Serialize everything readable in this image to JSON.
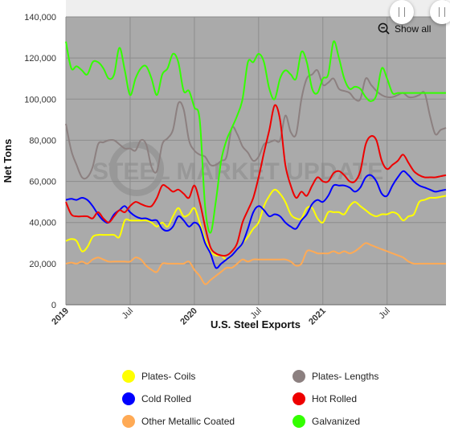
{
  "chart_data": {
    "type": "line",
    "xlabel": "U.S. Steel Exports",
    "ylabel": "Net Tons",
    "ylim": [
      0,
      140000
    ],
    "yticks": [
      "0",
      "20,000",
      "40,000",
      "60,000",
      "80,000",
      "100,000",
      "120,000",
      "140,000"
    ],
    "xticks": [
      {
        "label": "2019",
        "x": 0,
        "bold": true
      },
      {
        "label": "Jul",
        "x": 6,
        "bold": false
      },
      {
        "label": "2020",
        "x": 12,
        "bold": true
      },
      {
        "label": "Jul",
        "x": 18,
        "bold": false
      },
      {
        "label": "2021",
        "x": 24,
        "bold": true
      },
      {
        "label": "Jul",
        "x": 30,
        "bold": false
      }
    ],
    "xlim": [
      0,
      35.5
    ],
    "grid": true,
    "background": "#aaaaaa",
    "watermark": "STEEL MARKET UPDATE",
    "series": [
      {
        "name": "Plates- Coils",
        "color": "#ffff00",
        "x": [
          0,
          0.5,
          1,
          1.5,
          2,
          2.5,
          3,
          3.5,
          4,
          4.5,
          5,
          5.5,
          6,
          6.5,
          7,
          7.5,
          8,
          8.5,
          9,
          9.5,
          10,
          10.5,
          11,
          11.5,
          12,
          12.5,
          13,
          13.5,
          14,
          14.5,
          15,
          15.5,
          16,
          16.5,
          17,
          17.5,
          18,
          18.5,
          19,
          19.5,
          20,
          20.5,
          21,
          21.5,
          22,
          22.5,
          23,
          23.5,
          24,
          24.5,
          25,
          25.5,
          26,
          26.5,
          27,
          27.5,
          28,
          28.5,
          29,
          29.5,
          30,
          30.5,
          31,
          31.5,
          32,
          32.5,
          33,
          33.5,
          34,
          34.5,
          35,
          35.5
        ],
        "values": [
          31000,
          32000,
          31000,
          26000,
          28000,
          33000,
          34000,
          34000,
          34000,
          34000,
          33000,
          41000,
          41000,
          41000,
          41000,
          41000,
          40000,
          38000,
          40000,
          38000,
          43000,
          47000,
          43000,
          44000,
          47000,
          40000,
          32000,
          26000,
          24000,
          24000,
          22000,
          24000,
          27000,
          30000,
          33000,
          37000,
          40000,
          48000,
          53000,
          56000,
          54000,
          50000,
          44000,
          42000,
          42000,
          47000,
          47000,
          42000,
          40000,
          45000,
          45000,
          45000,
          44000,
          48000,
          50000,
          48000,
          46000,
          44000,
          43000,
          44000,
          44000,
          45000,
          44000,
          41000,
          43000,
          44000,
          50000,
          51000,
          52000,
          52000,
          52500,
          53000
        ]
      },
      {
        "name": "Plates- Lengths",
        "color": "#8c8080",
        "x": [
          0,
          0.5,
          1,
          1.5,
          2,
          2.5,
          3,
          3.5,
          4,
          4.5,
          5,
          5.5,
          6,
          6.5,
          7,
          7.5,
          8,
          8.5,
          9,
          9.5,
          10,
          10.5,
          11,
          11.5,
          12,
          12.5,
          13,
          13.5,
          14,
          14.5,
          15,
          15.5,
          16,
          16.5,
          17,
          17.5,
          18,
          18.5,
          19,
          19.5,
          20,
          20.5,
          21,
          21.5,
          22,
          22.5,
          23,
          23.5,
          24,
          24.5,
          25,
          25.5,
          26,
          26.5,
          27,
          27.5,
          28,
          28.5,
          29,
          29.5,
          30,
          30.5,
          31,
          31.5,
          32,
          32.5,
          33,
          33.5,
          34,
          34.5,
          35,
          35.5
        ],
        "values": [
          88000,
          75000,
          68000,
          62000,
          62000,
          67000,
          78000,
          79000,
          80000,
          80000,
          78000,
          76000,
          76000,
          75000,
          80000,
          78000,
          67000,
          65000,
          78000,
          81000,
          85000,
          98000,
          95000,
          80000,
          75000,
          73000,
          72000,
          68000,
          68000,
          70000,
          72000,
          86000,
          83000,
          77000,
          74000,
          70000,
          72000,
          78000,
          79000,
          80000,
          80000,
          92000,
          84000,
          83000,
          100000,
          110000,
          112000,
          114000,
          107000,
          108000,
          110000,
          105000,
          104000,
          103000,
          100000,
          100000,
          110000,
          107000,
          104000,
          102000,
          101000,
          101000,
          102000,
          103000,
          101000,
          101000,
          102000,
          103000,
          92000,
          83000,
          85000,
          86000
        ]
      },
      {
        "name": "Cold Rolled",
        "color": "#0000ff",
        "x": [
          0,
          0.5,
          1,
          1.5,
          2,
          2.5,
          3,
          3.5,
          4,
          4.5,
          5,
          5.5,
          6,
          6.5,
          7,
          7.5,
          8,
          8.5,
          9,
          9.5,
          10,
          10.5,
          11,
          11.5,
          12,
          12.5,
          13,
          13.5,
          14,
          14.5,
          15,
          15.5,
          16,
          16.5,
          17,
          17.5,
          18,
          18.5,
          19,
          19.5,
          20,
          20.5,
          21,
          21.5,
          22,
          22.5,
          23,
          23.5,
          24,
          24.5,
          25,
          25.5,
          26,
          26.5,
          27,
          27.5,
          28,
          28.5,
          29,
          29.5,
          30,
          30.5,
          31,
          31.5,
          32,
          32.5,
          33,
          33.5,
          34,
          34.5,
          35,
          35.5
        ],
        "values": [
          51000,
          51500,
          51000,
          52000,
          51000,
          48000,
          44000,
          41000,
          40000,
          44000,
          46000,
          48000,
          45000,
          43000,
          42000,
          42000,
          41000,
          41000,
          37000,
          36000,
          38000,
          43000,
          41000,
          38000,
          40000,
          38000,
          30000,
          25000,
          18000,
          20000,
          22000,
          24000,
          27000,
          30000,
          37000,
          45000,
          48000,
          46000,
          43000,
          44000,
          43000,
          40000,
          38000,
          37000,
          41000,
          44000,
          49000,
          51000,
          50000,
          53000,
          58000,
          58000,
          58000,
          57000,
          55000,
          57000,
          62000,
          63000,
          60000,
          54000,
          53000,
          58000,
          62000,
          65000,
          63000,
          60000,
          58000,
          57000,
          56000,
          55000,
          55500,
          56000
        ]
      },
      {
        "name": "Hot Rolled",
        "color": "#ee0000",
        "x": [
          0,
          0.5,
          1,
          1.5,
          2,
          2.5,
          3,
          3.5,
          4,
          4.5,
          5,
          5.5,
          6,
          6.5,
          7,
          7.5,
          8,
          8.5,
          9,
          9.5,
          10,
          10.5,
          11,
          11.5,
          12,
          12.5,
          13,
          13.5,
          14,
          14.5,
          15,
          15.5,
          16,
          16.5,
          17,
          17.5,
          18,
          18.5,
          19,
          19.5,
          20,
          20.5,
          21,
          21.5,
          22,
          22.5,
          23,
          23.5,
          24,
          24.5,
          25,
          25.5,
          26,
          26.5,
          27,
          27.5,
          28,
          28.5,
          29,
          29.5,
          30,
          30.5,
          31,
          31.5,
          32,
          32.5,
          33,
          33.5,
          34,
          34.5,
          35,
          35.5
        ],
        "values": [
          50000,
          44000,
          43000,
          43000,
          43000,
          42000,
          45000,
          42000,
          40000,
          43000,
          46000,
          45000,
          48000,
          50000,
          49000,
          48000,
          48000,
          52000,
          58000,
          57000,
          55000,
          56000,
          54000,
          52000,
          58000,
          50000,
          38000,
          28000,
          25000,
          24000,
          24000,
          26000,
          30000,
          40000,
          46000,
          52000,
          62000,
          74000,
          85000,
          97000,
          90000,
          68000,
          58000,
          52000,
          55000,
          53000,
          58000,
          62000,
          60000,
          60000,
          64000,
          65000,
          63000,
          60000,
          60000,
          65000,
          78000,
          82000,
          80000,
          70000,
          66000,
          68000,
          70000,
          73000,
          69000,
          65000,
          63000,
          62000,
          62000,
          62000,
          62500,
          63000
        ]
      },
      {
        "name": "Other Metallic Coated",
        "color": "#ffaa55",
        "x": [
          0,
          0.5,
          1,
          1.5,
          2,
          2.5,
          3,
          3.5,
          4,
          4.5,
          5,
          5.5,
          6,
          6.5,
          7,
          7.5,
          8,
          8.5,
          9,
          9.5,
          10,
          10.5,
          11,
          11.5,
          12,
          12.5,
          13,
          13.5,
          14,
          14.5,
          15,
          15.5,
          16,
          16.5,
          17,
          17.5,
          18,
          18.5,
          19,
          19.5,
          20,
          20.5,
          21,
          21.5,
          22,
          22.5,
          23,
          23.5,
          24,
          24.5,
          25,
          25.5,
          26,
          26.5,
          27,
          27.5,
          28,
          28.5,
          29,
          29.5,
          30,
          30.5,
          31,
          31.5,
          32,
          32.5,
          33,
          33.5,
          34,
          34.5,
          35,
          35.5
        ],
        "values": [
          20000,
          20500,
          20000,
          21000,
          20000,
          22000,
          23000,
          22000,
          21000,
          21000,
          21000,
          21000,
          21000,
          23000,
          22000,
          19000,
          17000,
          16000,
          20000,
          20000,
          20000,
          20000,
          20000,
          21000,
          17000,
          14000,
          10000,
          12000,
          14000,
          16000,
          18000,
          18000,
          20000,
          22000,
          21000,
          22000,
          22000,
          22000,
          22000,
          22000,
          22000,
          22000,
          21000,
          19000,
          20000,
          26000,
          26000,
          25000,
          25000,
          25000,
          26000,
          25000,
          26000,
          25000,
          26000,
          28000,
          30000,
          29000,
          28000,
          27000,
          26000,
          25000,
          24000,
          23000,
          21000,
          20000,
          20000,
          20000,
          20000,
          20000,
          20000,
          20000
        ]
      },
      {
        "name": "Galvanized",
        "color": "#33ff00",
        "x": [
          0,
          0.5,
          1,
          1.5,
          2,
          2.5,
          3,
          3.5,
          4,
          4.5,
          5,
          5.5,
          6,
          6.5,
          7,
          7.5,
          8,
          8.5,
          9,
          9.5,
          10,
          10.5,
          11,
          11.5,
          12,
          12.5,
          13,
          13.5,
          14,
          14.5,
          15,
          15.5,
          16,
          16.5,
          17,
          17.5,
          18,
          18.5,
          19,
          19.5,
          20,
          20.5,
          21,
          21.5,
          22,
          22.5,
          23,
          23.5,
          24,
          24.5,
          25,
          25.5,
          26,
          26.5,
          27,
          27.5,
          28,
          28.5,
          29,
          29.5,
          30,
          30.5,
          31,
          31.5,
          32,
          32.5,
          33,
          33.5,
          34,
          34.5,
          35,
          35.5
        ],
        "values": [
          128000,
          115000,
          116000,
          114000,
          112000,
          118000,
          118000,
          115000,
          110000,
          112000,
          125000,
          114000,
          102000,
          110000,
          115000,
          116000,
          110000,
          102000,
          112000,
          115000,
          122000,
          118000,
          104000,
          104000,
          96000,
          90000,
          48000,
          35000,
          50000,
          70000,
          80000,
          86000,
          92000,
          100000,
          118000,
          118000,
          122000,
          118000,
          105000,
          100000,
          110000,
          114000,
          112000,
          110000,
          123000,
          118000,
          105000,
          103000,
          110000,
          112000,
          128000,
          120000,
          110000,
          105000,
          106000,
          105000,
          101000,
          99000,
          102000,
          115000,
          110000,
          103000,
          103000,
          103000,
          103000,
          103000,
          103000,
          103000,
          103000,
          103000,
          103000,
          103000
        ]
      }
    ]
  },
  "toolbar": {
    "show_all_label": "Show all"
  },
  "legend_layout": [
    "Plates- Coils",
    "Plates- Lengths",
    "Cold Rolled",
    "Hot Rolled",
    "Other Metallic Coated",
    "Galvanized"
  ]
}
